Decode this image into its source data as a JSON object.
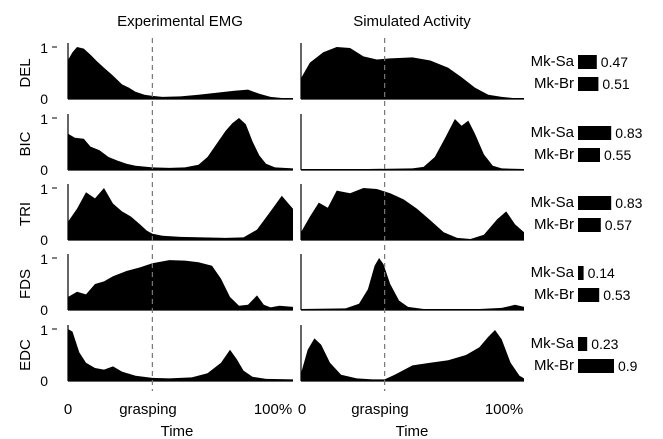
{
  "chart_data": {
    "type": "area",
    "panel_titles": [
      "Experimental EMG",
      "Simulated Activity"
    ],
    "xlabel": "Time",
    "x_tick_labels": [
      "0",
      "grasping",
      "100%"
    ],
    "grasping_fraction": 0.375,
    "ylim": [
      0,
      1
    ],
    "y_tick_labels": [
      "0",
      "1"
    ],
    "muscles": [
      {
        "name": "DEL",
        "experimental": [
          [
            0,
            0.75
          ],
          [
            0.02,
            0.9
          ],
          [
            0.04,
            1.0
          ],
          [
            0.07,
            0.97
          ],
          [
            0.1,
            0.85
          ],
          [
            0.13,
            0.72
          ],
          [
            0.16,
            0.6
          ],
          [
            0.2,
            0.45
          ],
          [
            0.24,
            0.28
          ],
          [
            0.27,
            0.22
          ],
          [
            0.3,
            0.14
          ],
          [
            0.34,
            0.08
          ],
          [
            0.375,
            0.06
          ],
          [
            0.42,
            0.04
          ],
          [
            0.5,
            0.05
          ],
          [
            0.58,
            0.08
          ],
          [
            0.66,
            0.12
          ],
          [
            0.74,
            0.16
          ],
          [
            0.8,
            0.18
          ],
          [
            0.85,
            0.1
          ],
          [
            0.9,
            0.04
          ],
          [
            0.95,
            0.02
          ],
          [
            1,
            0.02
          ]
        ],
        "simulated": [
          [
            0,
            0.4
          ],
          [
            0.04,
            0.7
          ],
          [
            0.1,
            0.9
          ],
          [
            0.16,
            1.0
          ],
          [
            0.22,
            0.98
          ],
          [
            0.28,
            0.82
          ],
          [
            0.34,
            0.76
          ],
          [
            0.4,
            0.78
          ],
          [
            0.5,
            0.8
          ],
          [
            0.58,
            0.74
          ],
          [
            0.66,
            0.6
          ],
          [
            0.72,
            0.42
          ],
          [
            0.78,
            0.22
          ],
          [
            0.84,
            0.08
          ],
          [
            0.9,
            0.04
          ],
          [
            0.95,
            0.02
          ],
          [
            1,
            0.02
          ]
        ],
        "bars": [
          {
            "label": "Mk-Sa",
            "value": 0.47
          },
          {
            "label": "Mk-Br",
            "value": 0.51
          }
        ]
      },
      {
        "name": "BIC",
        "experimental": [
          [
            0,
            0.7
          ],
          [
            0.03,
            0.62
          ],
          [
            0.07,
            0.6
          ],
          [
            0.1,
            0.45
          ],
          [
            0.14,
            0.38
          ],
          [
            0.18,
            0.25
          ],
          [
            0.22,
            0.18
          ],
          [
            0.26,
            0.12
          ],
          [
            0.3,
            0.08
          ],
          [
            0.375,
            0.05
          ],
          [
            0.45,
            0.04
          ],
          [
            0.52,
            0.05
          ],
          [
            0.58,
            0.1
          ],
          [
            0.62,
            0.25
          ],
          [
            0.66,
            0.5
          ],
          [
            0.7,
            0.75
          ],
          [
            0.73,
            0.9
          ],
          [
            0.76,
            1.0
          ],
          [
            0.79,
            0.88
          ],
          [
            0.82,
            0.55
          ],
          [
            0.85,
            0.28
          ],
          [
            0.88,
            0.12
          ],
          [
            0.92,
            0.05
          ],
          [
            1,
            0.03
          ]
        ],
        "simulated": [
          [
            0,
            0.02
          ],
          [
            0.3,
            0.02
          ],
          [
            0.5,
            0.03
          ],
          [
            0.55,
            0.06
          ],
          [
            0.6,
            0.25
          ],
          [
            0.65,
            0.65
          ],
          [
            0.69,
            0.98
          ],
          [
            0.72,
            0.85
          ],
          [
            0.75,
            0.95
          ],
          [
            0.78,
            0.7
          ],
          [
            0.82,
            0.3
          ],
          [
            0.86,
            0.08
          ],
          [
            0.9,
            0.03
          ],
          [
            1,
            0.02
          ]
        ],
        "bars": [
          {
            "label": "Mk-Sa",
            "value": 0.83
          },
          {
            "label": "Mk-Br",
            "value": 0.55
          }
        ]
      },
      {
        "name": "TRI",
        "experimental": [
          [
            0,
            0.35
          ],
          [
            0.04,
            0.6
          ],
          [
            0.08,
            0.92
          ],
          [
            0.12,
            0.8
          ],
          [
            0.16,
            1.0
          ],
          [
            0.2,
            0.7
          ],
          [
            0.24,
            0.55
          ],
          [
            0.28,
            0.45
          ],
          [
            0.32,
            0.3
          ],
          [
            0.35,
            0.18
          ],
          [
            0.375,
            0.12
          ],
          [
            0.42,
            0.08
          ],
          [
            0.5,
            0.06
          ],
          [
            0.6,
            0.05
          ],
          [
            0.7,
            0.04
          ],
          [
            0.78,
            0.05
          ],
          [
            0.84,
            0.2
          ],
          [
            0.9,
            0.55
          ],
          [
            0.95,
            0.85
          ],
          [
            0.98,
            0.7
          ],
          [
            1,
            0.6
          ]
        ],
        "simulated": [
          [
            0,
            0.15
          ],
          [
            0.04,
            0.45
          ],
          [
            0.08,
            0.72
          ],
          [
            0.12,
            0.62
          ],
          [
            0.16,
            0.95
          ],
          [
            0.22,
            0.9
          ],
          [
            0.28,
            1.0
          ],
          [
            0.34,
            0.98
          ],
          [
            0.4,
            0.9
          ],
          [
            0.46,
            0.78
          ],
          [
            0.52,
            0.6
          ],
          [
            0.58,
            0.38
          ],
          [
            0.64,
            0.15
          ],
          [
            0.7,
            0.04
          ],
          [
            0.76,
            0.02
          ],
          [
            0.82,
            0.1
          ],
          [
            0.88,
            0.4
          ],
          [
            0.92,
            0.55
          ],
          [
            0.96,
            0.3
          ],
          [
            1,
            0.15
          ]
        ],
        "bars": [
          {
            "label": "Mk-Sa",
            "value": 0.83
          },
          {
            "label": "Mk-Br",
            "value": 0.57
          }
        ]
      },
      {
        "name": "FDS",
        "experimental": [
          [
            0,
            0.25
          ],
          [
            0.04,
            0.35
          ],
          [
            0.08,
            0.3
          ],
          [
            0.12,
            0.5
          ],
          [
            0.16,
            0.55
          ],
          [
            0.2,
            0.65
          ],
          [
            0.26,
            0.75
          ],
          [
            0.32,
            0.82
          ],
          [
            0.375,
            0.9
          ],
          [
            0.45,
            0.96
          ],
          [
            0.52,
            0.95
          ],
          [
            0.58,
            0.92
          ],
          [
            0.64,
            0.85
          ],
          [
            0.68,
            0.6
          ],
          [
            0.72,
            0.25
          ],
          [
            0.76,
            0.08
          ],
          [
            0.8,
            0.1
          ],
          [
            0.84,
            0.28
          ],
          [
            0.87,
            0.1
          ],
          [
            0.9,
            0.05
          ],
          [
            0.94,
            0.08
          ],
          [
            1,
            0.06
          ]
        ],
        "simulated": [
          [
            0,
            0.02
          ],
          [
            0.2,
            0.03
          ],
          [
            0.26,
            0.12
          ],
          [
            0.3,
            0.4
          ],
          [
            0.33,
            0.85
          ],
          [
            0.35,
            1.0
          ],
          [
            0.37,
            0.88
          ],
          [
            0.4,
            0.5
          ],
          [
            0.44,
            0.18
          ],
          [
            0.48,
            0.06
          ],
          [
            0.55,
            0.02
          ],
          [
            0.8,
            0.02
          ],
          [
            0.9,
            0.04
          ],
          [
            0.96,
            0.1
          ],
          [
            1,
            0.06
          ]
        ],
        "bars": [
          {
            "label": "Mk-Sa",
            "value": 0.14
          },
          {
            "label": "Mk-Br",
            "value": 0.53
          }
        ]
      },
      {
        "name": "EDC",
        "experimental": [
          [
            0,
            1.0
          ],
          [
            0.02,
            0.95
          ],
          [
            0.05,
            0.55
          ],
          [
            0.08,
            0.35
          ],
          [
            0.12,
            0.25
          ],
          [
            0.16,
            0.22
          ],
          [
            0.2,
            0.28
          ],
          [
            0.24,
            0.18
          ],
          [
            0.3,
            0.1
          ],
          [
            0.375,
            0.06
          ],
          [
            0.45,
            0.05
          ],
          [
            0.55,
            0.07
          ],
          [
            0.62,
            0.15
          ],
          [
            0.68,
            0.35
          ],
          [
            0.72,
            0.6
          ],
          [
            0.75,
            0.42
          ],
          [
            0.78,
            0.2
          ],
          [
            0.82,
            0.08
          ],
          [
            0.88,
            0.04
          ],
          [
            1,
            0.03
          ]
        ],
        "simulated": [
          [
            0,
            0.15
          ],
          [
            0.03,
            0.6
          ],
          [
            0.06,
            0.82
          ],
          [
            0.09,
            0.7
          ],
          [
            0.13,
            0.35
          ],
          [
            0.18,
            0.12
          ],
          [
            0.25,
            0.05
          ],
          [
            0.32,
            0.03
          ],
          [
            0.375,
            0.03
          ],
          [
            0.42,
            0.12
          ],
          [
            0.5,
            0.3
          ],
          [
            0.58,
            0.35
          ],
          [
            0.66,
            0.4
          ],
          [
            0.74,
            0.5
          ],
          [
            0.8,
            0.65
          ],
          [
            0.84,
            0.85
          ],
          [
            0.87,
            0.98
          ],
          [
            0.9,
            0.8
          ],
          [
            0.94,
            0.35
          ],
          [
            0.98,
            0.1
          ],
          [
            1,
            0.05
          ]
        ],
        "bars": [
          {
            "label": "Mk-Sa",
            "value": 0.23
          },
          {
            "label": "Mk-Br",
            "value": 0.9
          }
        ]
      }
    ]
  }
}
